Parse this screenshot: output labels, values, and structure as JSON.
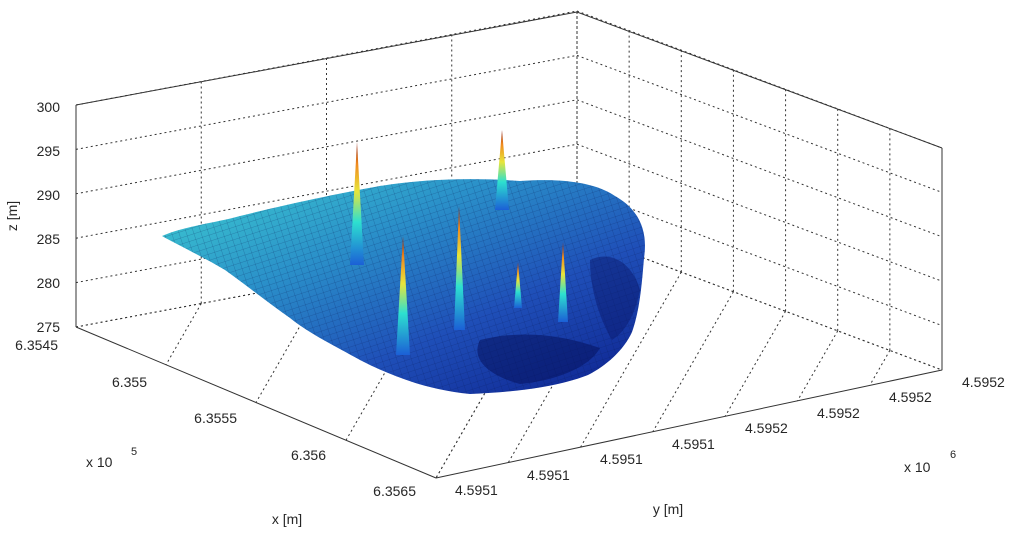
{
  "chart_data": {
    "type": "surface",
    "title": "",
    "xlabel": "x [m]",
    "ylabel": "y [m]",
    "zlabel": "z [m]",
    "x_multiplier": "x 10",
    "x_exponent": "5",
    "y_multiplier": "x 10",
    "y_exponent": "6",
    "x_ticks": [
      "6.3545",
      "6.355",
      "6.3555",
      "6.356",
      "6.3565"
    ],
    "y_ticks": [
      "4.5951",
      "4.5951",
      "4.5951",
      "4.5951",
      "4.5952",
      "4.5952",
      "4.5952",
      "4.5952"
    ],
    "z_ticks": [
      "275",
      "280",
      "285",
      "290",
      "295",
      "300"
    ],
    "zlim": [
      275,
      300
    ],
    "grid": true,
    "colormap": "jet",
    "base_elevation": 283,
    "peaks": [
      {
        "x": 6.3548,
        "z": 295
      },
      {
        "x": 6.3552,
        "z": 286
      },
      {
        "x": 6.3554,
        "z": 287
      },
      {
        "x": 6.3556,
        "z": 284
      },
      {
        "x": 6.3558,
        "z": 285
      },
      {
        "x": 6.3554,
        "z": 296
      }
    ]
  }
}
